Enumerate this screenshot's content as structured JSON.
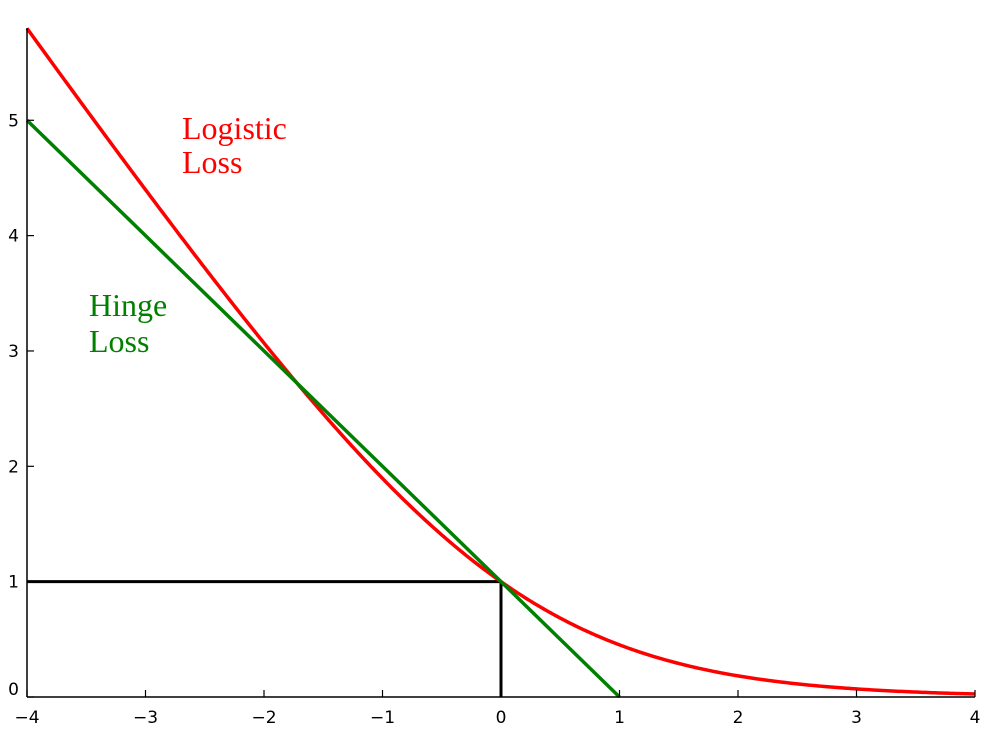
{
  "chart_data": {
    "type": "line",
    "title": "",
    "xlabel": "",
    "ylabel": "",
    "xlim": [
      -4,
      4
    ],
    "ylim": [
      0,
      5.8
    ],
    "xticks": [
      -4,
      -3,
      -2,
      -1,
      0,
      1,
      2,
      3,
      4
    ],
    "xtick_labels": [
      "−4",
      "−3",
      "−2",
      "−1",
      "0",
      "1",
      "2",
      "3",
      "4"
    ],
    "yticks": [
      0,
      1,
      2,
      3,
      4,
      5
    ],
    "ytick_labels": [
      "0",
      "1",
      "2",
      "3",
      "4",
      "5"
    ],
    "grid": false,
    "series": [
      {
        "name": "Logistic Loss",
        "label_lines": [
          "Logistic",
          "Loss"
        ],
        "function": "log2(1+exp(-x))",
        "color": "#ff0000",
        "x": [
          -4,
          -3.5,
          -3,
          -2.5,
          -2,
          -1.5,
          -1,
          -0.5,
          0,
          0.5,
          1,
          1.5,
          2,
          2.5,
          3,
          3.5,
          4
        ],
        "y": [
          5.79,
          5.08,
          4.37,
          3.69,
          3.03,
          2.42,
          1.89,
          1.4,
          1.0,
          0.68,
          0.45,
          0.29,
          0.18,
          0.11,
          0.07,
          0.04,
          0.03
        ]
      },
      {
        "name": "Hinge Loss",
        "label_lines": [
          "Hinge",
          "Loss"
        ],
        "function": "max(0, 1-x)",
        "color": "#008000",
        "x": [
          -4,
          1
        ],
        "y": [
          5,
          0
        ]
      }
    ],
    "reference_lines": [
      {
        "type": "horizontal",
        "y": 1,
        "from_x": -4,
        "to_x": 0,
        "color": "#000000"
      },
      {
        "type": "vertical",
        "x": 0,
        "from_y": 0,
        "to_y": 1,
        "color": "#000000"
      }
    ]
  }
}
